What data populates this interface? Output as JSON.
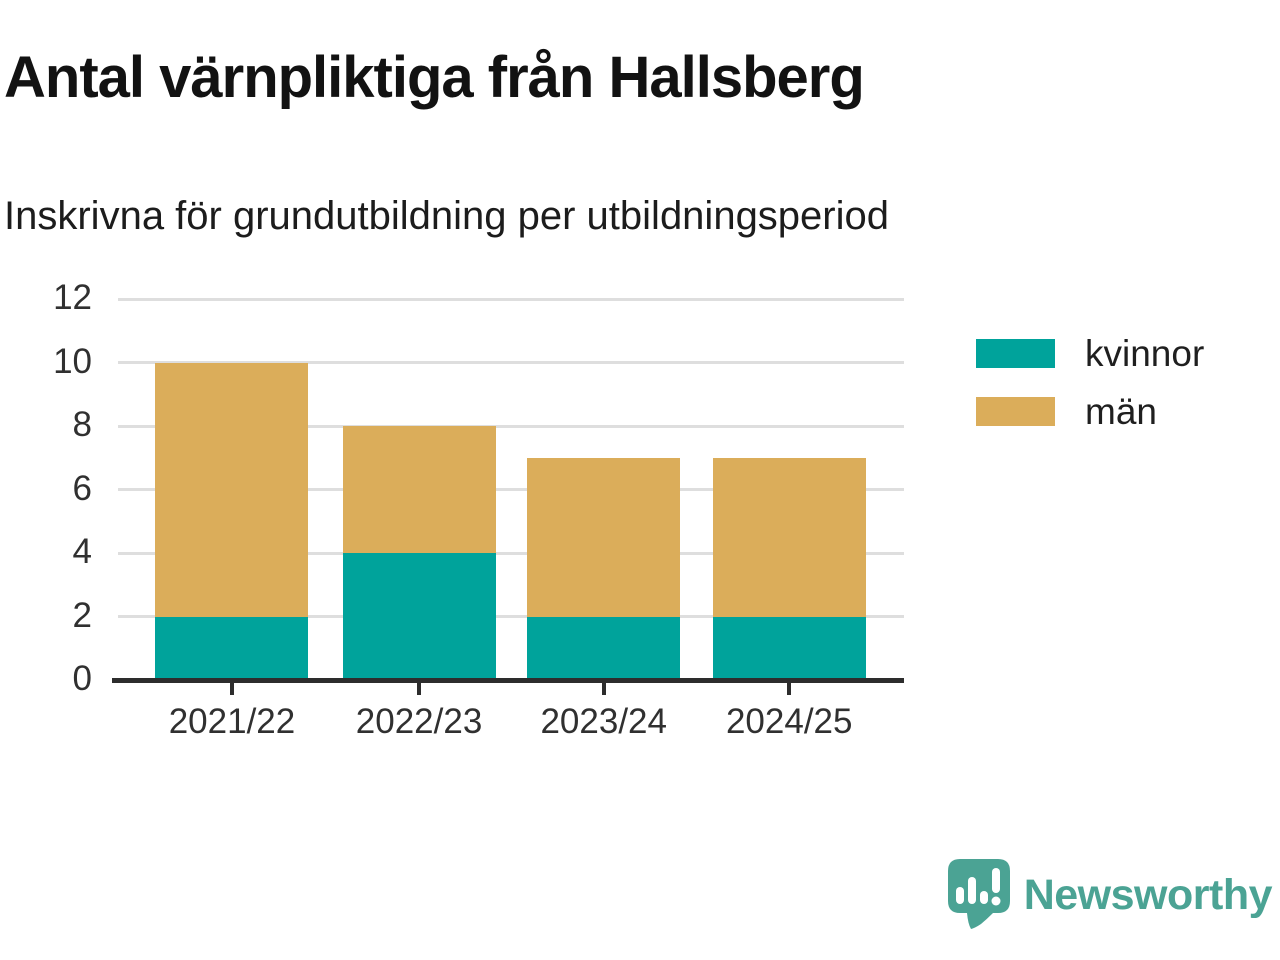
{
  "title": "Antal värnpliktiga från Hallsberg",
  "subtitle": "Inskrivna för grundutbildning per utbildningsperiod",
  "colors": {
    "kvinnor": "#00a39b",
    "man": "#dbad5a",
    "brand_teal": "#4ba394",
    "gridline": "#dedede",
    "axis": "#2d2d2d",
    "tick_text": "#303030"
  },
  "chart_data": {
    "type": "bar",
    "stacked": true,
    "title": "Antal värnpliktiga från Hallsberg",
    "subtitle": "Inskrivna för grundutbildning per utbildningsperiod",
    "categories": [
      "2021/22",
      "2022/23",
      "2023/24",
      "2024/25"
    ],
    "series": [
      {
        "name": "kvinnor",
        "color": "#00a39b",
        "values": [
          2,
          4,
          2,
          2
        ]
      },
      {
        "name": "män",
        "color": "#dbad5a",
        "values": [
          8,
          4,
          5,
          5
        ]
      }
    ],
    "totals": [
      10,
      8,
      7,
      7
    ],
    "xlabel": "",
    "ylabel": "",
    "ylim": [
      0,
      12
    ],
    "yticks": [
      0,
      2,
      4,
      6,
      8,
      10,
      12
    ],
    "grid": "horizontal",
    "legend_position": "right-of-plot"
  },
  "legend": {
    "items": [
      {
        "label": "kvinnor",
        "color": "#00a39b"
      },
      {
        "label": "män",
        "color": "#dbad5a"
      }
    ]
  },
  "branding": {
    "logo_text": "Newsworthy",
    "logo_icon": "bar-chart-speech-bubble-icon"
  }
}
